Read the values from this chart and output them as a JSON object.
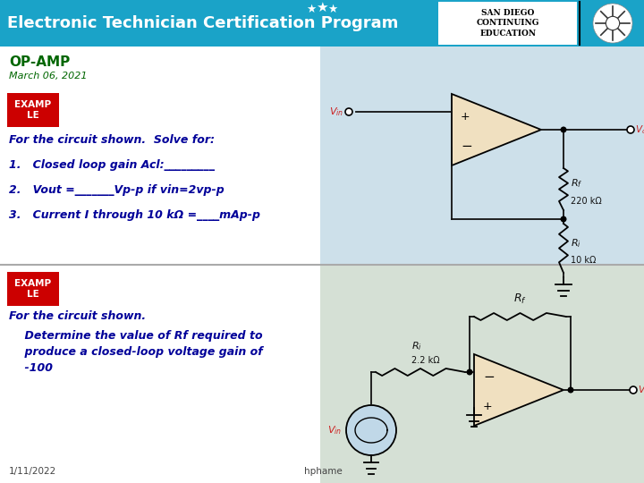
{
  "header_bg_color": "#1aa3c8",
  "header_text": "Electronic Technician Certification Program",
  "header_text_color": "#ffffff",
  "body_bg_color": "#e8e8e8",
  "left_bg_color": "#ffffff",
  "right_top_bg": "#d0e8f0",
  "right_bot_bg": "#dde8dd",
  "opamp_label": "OP-AMP",
  "opamp_label_color": "#006600",
  "date_text": "March 06, 2021",
  "date_color": "#006600",
  "example_bg": "#cc0000",
  "example_text_color": "#ffffff",
  "section1_text1": "For the circuit shown.  Solve for:",
  "section1_q1": "1.   Closed loop gain Acl:_________",
  "section1_q2": "2.   Vout =_______Vp-p if vin=2vp-p",
  "section1_q3": "3.   Current I through 10 kΩ =____mAp-p",
  "section2_text1": "For the circuit shown.",
  "section2_line1": "    Determine the value of Rf required to",
  "section2_line2": "    produce a closed-loop voltage gain of",
  "section2_line3": "    -100",
  "body_text_color": "#000099",
  "footer_text1": "1/11/2022",
  "footer_text2": "hphame",
  "footer_color": "#444444",
  "opamp_face": "#f0e0c0",
  "wire_color": "#111111",
  "vin_color": "#cc2222",
  "vout_color": "#cc2222",
  "label_color": "#111111"
}
